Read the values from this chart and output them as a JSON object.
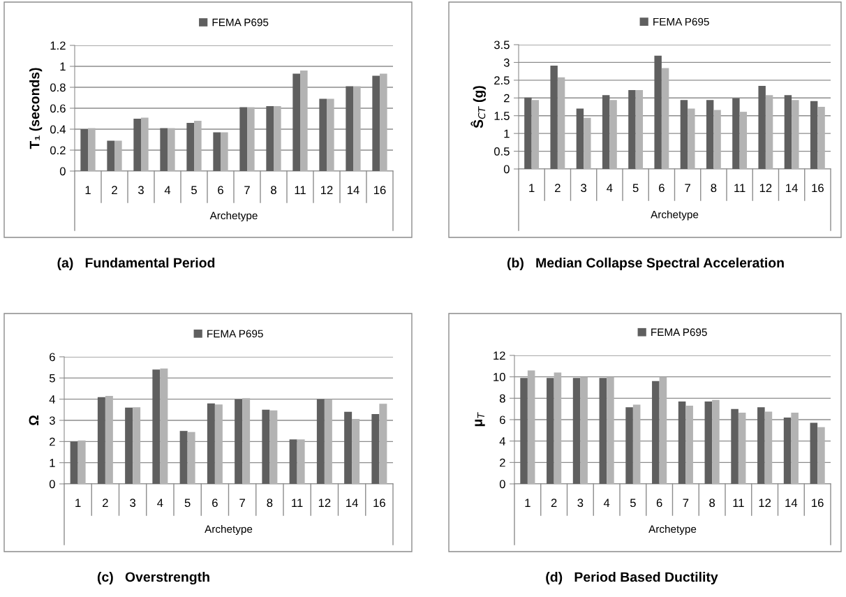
{
  "chart_data": [
    {
      "type": "bar",
      "title": "(a)   Fundamental Period",
      "xlabel": "Archetype",
      "ylabel": "T₁ (seconds)",
      "categories": [
        "1",
        "2",
        "3",
        "4",
        "5",
        "6",
        "7",
        "8",
        "11",
        "12",
        "14",
        "16"
      ],
      "series": [
        {
          "name": "FEMA P695",
          "color": "#5f5f5f",
          "values": [
            0.4,
            0.29,
            0.5,
            0.41,
            0.46,
            0.37,
            0.61,
            0.62,
            0.93,
            0.69,
            0.81,
            0.91
          ]
        },
        {
          "color": "#b3b3b3",
          "values": [
            0.41,
            0.29,
            0.51,
            0.41,
            0.48,
            0.37,
            0.61,
            0.62,
            0.96,
            0.69,
            0.81,
            0.93
          ]
        }
      ],
      "ylim": [
        0,
        1.2
      ],
      "yticks": [
        0,
        0.2,
        0.4,
        0.6,
        0.8,
        1,
        1.2
      ],
      "grid": "y",
      "legend": "top"
    },
    {
      "type": "bar",
      "title": "(b)   Median Collapse Spectral Acceleration",
      "xlabel": "Archetype",
      "ylabel": "Ŝ$_{CT}$ (g)",
      "categories": [
        "1",
        "2",
        "3",
        "4",
        "5",
        "6",
        "7",
        "8",
        "11",
        "12",
        "14",
        "16"
      ],
      "series": [
        {
          "name": "FEMA P695",
          "color": "#5f5f5f",
          "values": [
            2.01,
            2.91,
            1.7,
            2.08,
            2.22,
            3.19,
            1.94,
            1.94,
            1.99,
            2.34,
            2.08,
            1.91
          ]
        },
        {
          "color": "#b3b3b3",
          "values": [
            1.94,
            2.58,
            1.44,
            1.94,
            2.22,
            2.84,
            1.7,
            1.66,
            1.61,
            2.08,
            1.94,
            1.75
          ]
        }
      ],
      "ylim": [
        0,
        3.5
      ],
      "yticks": [
        0,
        0.5,
        1,
        1.5,
        2,
        2.5,
        3,
        3.5
      ],
      "grid": "y",
      "legend": "top"
    },
    {
      "type": "bar",
      "title": "(c)   Overstrength",
      "xlabel": "Archetype",
      "ylabel": "Ω",
      "categories": [
        "1",
        "2",
        "3",
        "4",
        "5",
        "6",
        "7",
        "8",
        "11",
        "12",
        "14",
        "16"
      ],
      "series": [
        {
          "name": "FEMA P695",
          "color": "#5f5f5f",
          "values": [
            2.0,
            4.1,
            3.6,
            5.4,
            2.5,
            3.8,
            4.0,
            3.5,
            2.1,
            4.0,
            3.4,
            3.3
          ]
        },
        {
          "color": "#b3b3b3",
          "values": [
            2.05,
            4.15,
            3.62,
            5.45,
            2.45,
            3.75,
            4.05,
            3.47,
            2.1,
            4.0,
            3.07,
            3.78
          ]
        }
      ],
      "ylim": [
        0,
        6
      ],
      "yticks": [
        0,
        1,
        2,
        3,
        4,
        5,
        6
      ],
      "grid": "y",
      "legend": "top"
    },
    {
      "type": "bar",
      "title": "(d)   Period Based Ductility",
      "xlabel": "Archetype",
      "ylabel": "μ$_{T}$",
      "categories": [
        "1",
        "2",
        "3",
        "4",
        "5",
        "6",
        "7",
        "8",
        "11",
        "12",
        "14",
        "16"
      ],
      "series": [
        {
          "name": "FEMA P695",
          "color": "#5f5f5f",
          "values": [
            9.9,
            9.9,
            9.9,
            9.9,
            7.15,
            9.6,
            7.7,
            7.7,
            7.0,
            7.15,
            6.2,
            5.7
          ]
        },
        {
          "color": "#b3b3b3",
          "values": [
            10.6,
            10.4,
            10.0,
            10.0,
            7.4,
            10.0,
            7.3,
            7.85,
            6.65,
            6.75,
            6.65,
            5.3
          ]
        }
      ],
      "ylim": [
        0,
        12
      ],
      "yticks": [
        0,
        2,
        4,
        6,
        8,
        10,
        12
      ],
      "grid": "y",
      "legend": "top"
    }
  ]
}
